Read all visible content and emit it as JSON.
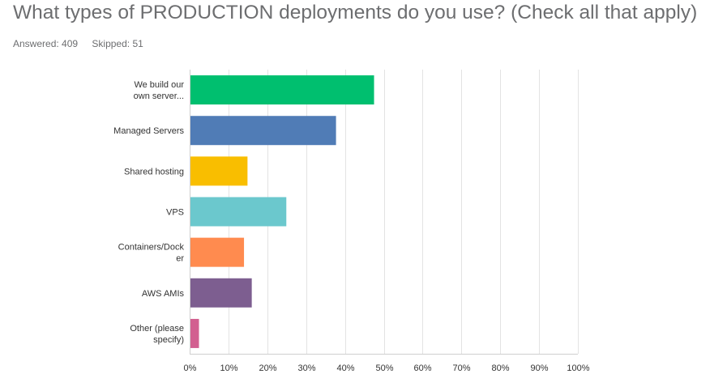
{
  "title": "What types of PRODUCTION deployments do you use? (Check all that apply)",
  "answered_label": "Answered: 409",
  "skipped_label": "Skipped: 51",
  "chart_data": {
    "type": "bar",
    "orientation": "horizontal",
    "categories": [
      [
        "We build our",
        "own server..."
      ],
      [
        "Managed Servers"
      ],
      [
        "Shared hosting"
      ],
      [
        "VPS"
      ],
      [
        "Containers/Dock",
        "er"
      ],
      [
        "AWS AMIs"
      ],
      [
        "Other (please",
        "specify)"
      ]
    ],
    "values": [
      47.5,
      37.7,
      14.9,
      24.9,
      14.0,
      16.0,
      2.4
    ],
    "colors": [
      "#00bf6f",
      "#507cb6",
      "#f9be00",
      "#6bc8cd",
      "#ff8b4f",
      "#7d5e90",
      "#d25f90"
    ],
    "xticks": [
      "0%",
      "10%",
      "20%",
      "30%",
      "40%",
      "50%",
      "60%",
      "70%",
      "80%",
      "90%",
      "100%"
    ],
    "xlim": [
      0,
      100
    ],
    "grid": true
  }
}
